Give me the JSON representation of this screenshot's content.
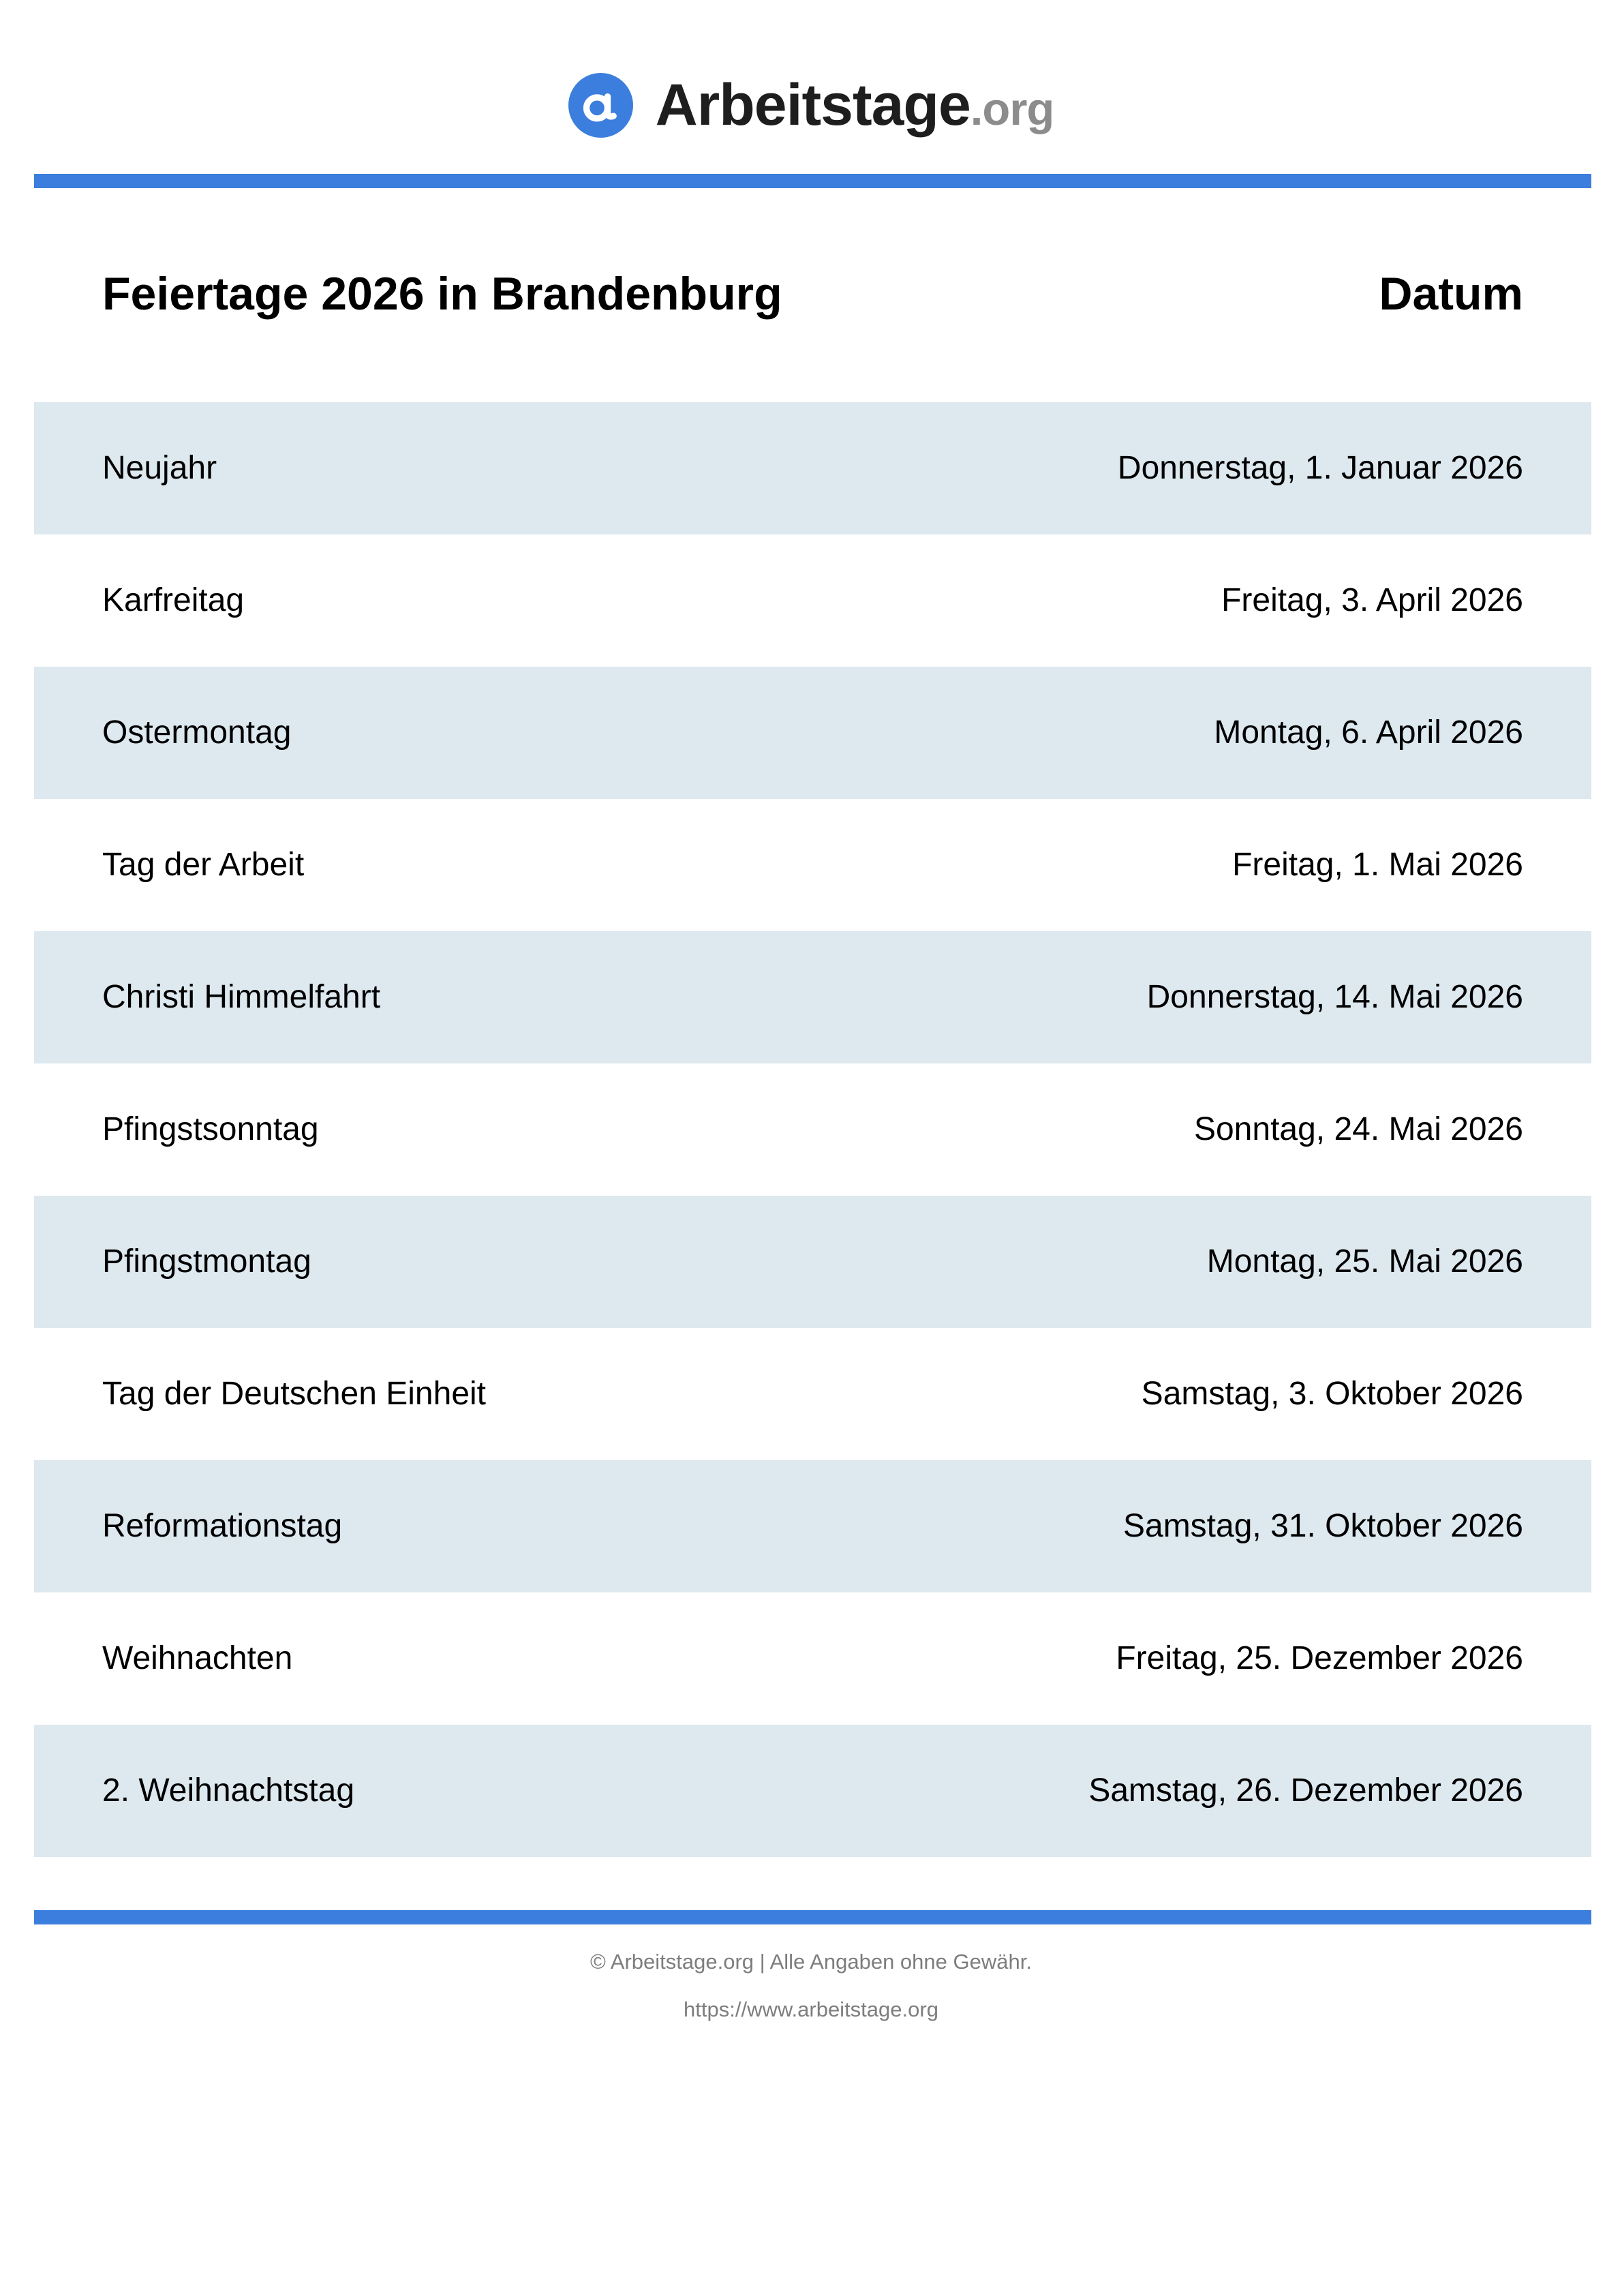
{
  "colors": {
    "accent_blue": "#3c7edd",
    "row_shade": "#dde8ef",
    "logo_text_color": "#1e1e1e",
    "logo_suffix_color": "#8c8c8c",
    "footer_text_color": "#7d7d7d"
  },
  "header": {
    "logo_icon": "arbeitstage-a-icon",
    "logo_text": "Arbeitstage",
    "logo_suffix": ".org"
  },
  "table": {
    "title": "Feiertage 2026 in Brandenburg",
    "date_header": "Datum",
    "rows": [
      {
        "name": "Neujahr",
        "date": "Donnerstag, 1. Januar 2026"
      },
      {
        "name": "Karfreitag",
        "date": "Freitag, 3. April 2026"
      },
      {
        "name": "Ostermontag",
        "date": "Montag, 6. April 2026"
      },
      {
        "name": "Tag der Arbeit",
        "date": "Freitag, 1. Mai 2026"
      },
      {
        "name": "Christi Himmelfahrt",
        "date": "Donnerstag, 14. Mai 2026"
      },
      {
        "name": "Pfingstsonntag",
        "date": "Sonntag, 24. Mai 2026"
      },
      {
        "name": "Pfingstmontag",
        "date": "Montag, 25. Mai 2026"
      },
      {
        "name": "Tag der Deutschen Einheit",
        "date": "Samstag, 3. Oktober 2026"
      },
      {
        "name": "Reformationstag",
        "date": "Samstag, 31. Oktober 2026"
      },
      {
        "name": "Weihnachten",
        "date": "Freitag, 25. Dezember 2026"
      },
      {
        "name": "2. Weihnachtstag",
        "date": "Samstag, 26. Dezember 2026"
      }
    ]
  },
  "footer": {
    "copyright": "© Arbeitstage.org | Alle Angaben ohne Gewähr.",
    "url": "https://www.arbeitstage.org"
  }
}
